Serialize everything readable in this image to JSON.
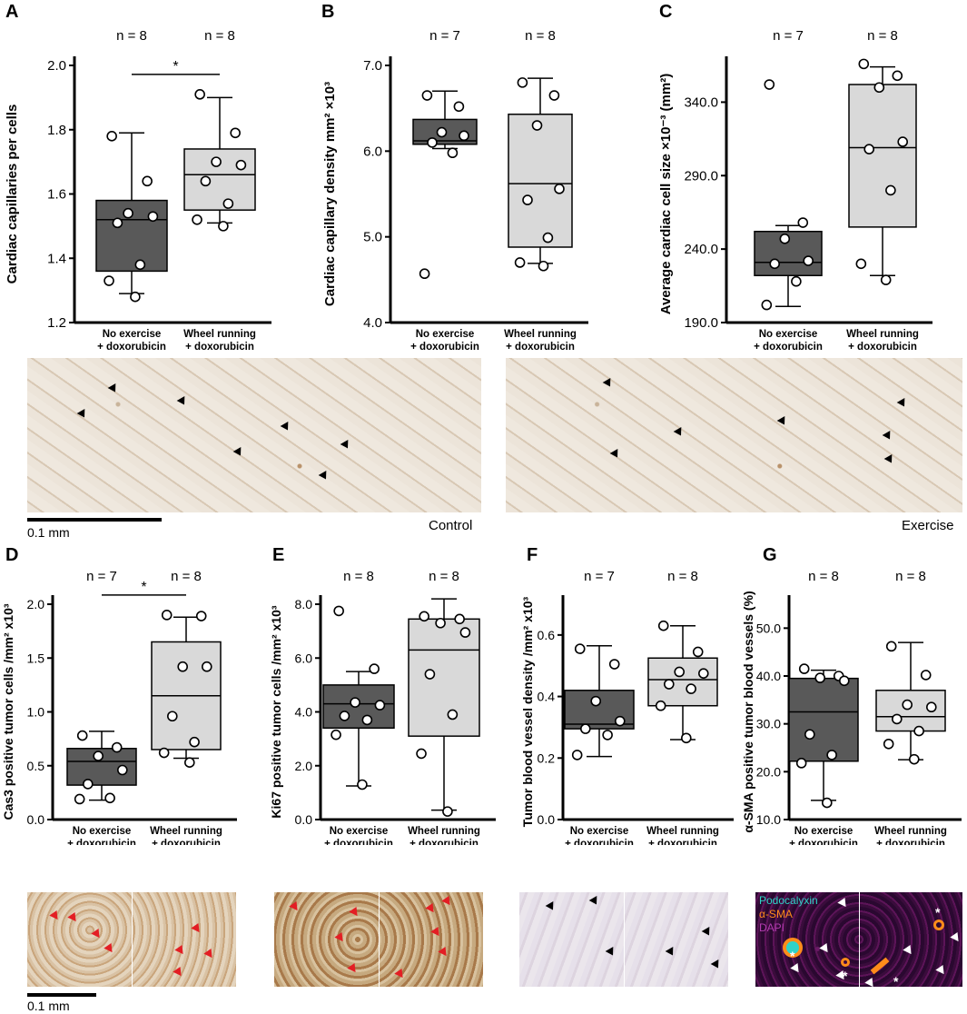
{
  "chart_data": [
    {
      "panel": "A",
      "type": "box",
      "ylabel": "Cardiac  capillaries per cells",
      "ylim": [
        1.2,
        2.0
      ],
      "yticks": [
        "1.2",
        "1.4",
        "1.6",
        "1.8",
        "2.0"
      ],
      "categories": [
        "No exercise\n+ doxorubicin",
        "Wheel running\n+ doxorubicin"
      ],
      "n_labels": [
        "n = 8",
        "n = 8"
      ],
      "significance": "*",
      "boxes": [
        {
          "color": "#595959",
          "min": 1.29,
          "q1": 1.36,
          "median": 1.52,
          "q3": 1.58,
          "max": 1.79,
          "points": [
            1.78,
            1.64,
            1.54,
            1.53,
            1.51,
            1.38,
            1.33,
            1.28
          ]
        },
        {
          "color": "#d9d9d9",
          "min": 1.51,
          "q1": 1.55,
          "median": 1.66,
          "q3": 1.74,
          "max": 1.9,
          "points": [
            1.91,
            1.79,
            1.7,
            1.69,
            1.64,
            1.57,
            1.52,
            1.5
          ]
        }
      ]
    },
    {
      "panel": "B",
      "type": "box",
      "ylabel": "Cardiac  capillary density mm² ×10³",
      "ylim": [
        4.0,
        7.0
      ],
      "yticks": [
        "4.0",
        "5.0",
        "6.0",
        "7.0"
      ],
      "categories": [
        "No exercise\n+ doxorubicin",
        "Wheel running\n+ doxorubicin"
      ],
      "n_labels": [
        "n = 7",
        "n = 8"
      ],
      "significance": "",
      "boxes": [
        {
          "color": "#595959",
          "min": 6.03,
          "q1": 6.08,
          "median": 6.12,
          "q3": 6.37,
          "max": 6.7,
          "points": [
            6.65,
            6.52,
            6.22,
            6.18,
            6.1,
            5.98,
            4.57
          ]
        },
        {
          "color": "#d9d9d9",
          "min": 4.69,
          "q1": 4.88,
          "median": 5.62,
          "q3": 6.43,
          "max": 6.85,
          "points": [
            6.8,
            6.65,
            6.3,
            5.56,
            5.43,
            4.99,
            4.7,
            4.66
          ]
        }
      ]
    },
    {
      "panel": "C",
      "type": "box",
      "ylabel": "Average cardiac cell size ×10⁻³ (mm²)",
      "ylim": [
        190.0,
        365.0
      ],
      "yticks": [
        "190.0",
        "240.0",
        "290.0",
        "340.0"
      ],
      "categories": [
        "No exercise\n+ doxorubicin",
        "Wheel running\n+ doxorubicin"
      ],
      "n_labels": [
        "n = 7",
        "n = 8"
      ],
      "significance": "",
      "boxes": [
        {
          "color": "#595959",
          "min": 201,
          "q1": 222,
          "median": 231,
          "q3": 252,
          "max": 256,
          "points": [
            352,
            258,
            247,
            232,
            230,
            218,
            202
          ]
        },
        {
          "color": "#d9d9d9",
          "min": 222,
          "q1": 255,
          "median": 309,
          "q3": 352,
          "max": 364,
          "points": [
            366,
            358,
            350,
            313,
            308,
            280,
            230,
            219
          ]
        }
      ]
    },
    {
      "panel": "D",
      "type": "box",
      "ylabel": "Cas3 positive tumor cells /mm² x10³",
      "ylim": [
        0.0,
        2.0
      ],
      "yticks": [
        "0.0",
        "0.5",
        "1.0",
        "1.5",
        "2.0"
      ],
      "categories": [
        "No exercise\n+ doxorubicin",
        "Wheel running\n+ doxorubicin"
      ],
      "n_labels": [
        "n = 7",
        "n = 8"
      ],
      "significance": "*",
      "boxes": [
        {
          "color": "#595959",
          "min": 0.18,
          "q1": 0.32,
          "median": 0.54,
          "q3": 0.66,
          "max": 0.82,
          "points": [
            0.78,
            0.67,
            0.59,
            0.46,
            0.33,
            0.2,
            0.19
          ]
        },
        {
          "color": "#d9d9d9",
          "min": 0.57,
          "q1": 0.65,
          "median": 1.15,
          "q3": 1.65,
          "max": 1.88,
          "points": [
            1.9,
            1.89,
            1.42,
            1.42,
            0.96,
            0.72,
            0.62,
            0.53
          ]
        }
      ]
    },
    {
      "panel": "E",
      "type": "box",
      "ylabel": "Ki67 positive tumor cells /mm² x10³",
      "ylim": [
        0.0,
        8.0
      ],
      "yticks": [
        "0.0",
        "2.0",
        "4.0",
        "6.0",
        "8.0"
      ],
      "categories": [
        "No exercise\n+ doxorubicin",
        "Wheel running\n+ doxorubicin"
      ],
      "n_labels": [
        "n = 8",
        "n = 8"
      ],
      "significance": "",
      "boxes": [
        {
          "color": "#595959",
          "min": 1.25,
          "q1": 3.4,
          "median": 4.3,
          "q3": 5.0,
          "max": 5.5,
          "points": [
            7.75,
            5.6,
            4.35,
            4.25,
            3.85,
            3.7,
            3.15,
            1.3
          ]
        },
        {
          "color": "#d9d9d9",
          "min": 0.35,
          "q1": 3.1,
          "median": 6.3,
          "q3": 7.45,
          "max": 8.2,
          "points": [
            7.55,
            7.45,
            7.3,
            6.95,
            5.4,
            3.9,
            2.45,
            0.3
          ]
        }
      ]
    },
    {
      "panel": "F",
      "type": "box",
      "ylabel": "Tumor blood vessel density /mm² x10³",
      "ylim": [
        0.0,
        0.7
      ],
      "yticks": [
        "0.0",
        "0.2",
        "0.4",
        "0.6"
      ],
      "categories": [
        "No exercise\n+ doxorubicin",
        "Wheel running\n+ doxorubicin"
      ],
      "n_labels": [
        "n = 7",
        "n = 8"
      ],
      "significance": "",
      "boxes": [
        {
          "color": "#595959",
          "min": 0.205,
          "q1": 0.295,
          "median": 0.31,
          "q3": 0.42,
          "max": 0.565,
          "points": [
            0.555,
            0.505,
            0.385,
            0.32,
            0.295,
            0.275,
            0.21
          ]
        },
        {
          "color": "#d9d9d9",
          "min": 0.26,
          "q1": 0.37,
          "median": 0.455,
          "q3": 0.525,
          "max": 0.63,
          "points": [
            0.63,
            0.545,
            0.48,
            0.475,
            0.44,
            0.425,
            0.37,
            0.265
          ]
        }
      ]
    },
    {
      "panel": "G",
      "type": "box",
      "ylabel": "α-SMA positive tumor blood vessels (%)",
      "ylim": [
        10.0,
        55.0
      ],
      "yticks": [
        "10.0",
        "20.0",
        "30.0",
        "40.0",
        "50.0"
      ],
      "categories": [
        "No exercise\n+ doxorubicin",
        "Wheel running\n+ doxorubicin"
      ],
      "n_labels": [
        "n = 8",
        "n = 8"
      ],
      "significance": "",
      "boxes": [
        {
          "color": "#595959",
          "min": 14.0,
          "q1": 22.2,
          "median": 32.5,
          "q3": 39.5,
          "max": 41.2,
          "points": [
            41.5,
            40.0,
            39.6,
            39.0,
            27.8,
            23.5,
            21.8,
            13.5
          ]
        },
        {
          "color": "#d9d9d9",
          "min": 22.5,
          "q1": 28.5,
          "median": 31.5,
          "q3": 37.0,
          "max": 47.0,
          "points": [
            46.2,
            40.2,
            34.0,
            33.5,
            31.0,
            28.5,
            25.8,
            22.6
          ]
        }
      ]
    }
  ],
  "labels": {
    "panel_letters": [
      "A",
      "B",
      "C",
      "D",
      "E",
      "F",
      "G"
    ],
    "micro_captions": {
      "control": "Control",
      "exercise": "Exercise"
    },
    "scale_labels": {
      "top": "0.1 mm",
      "bottom": "0.1 mm"
    },
    "fluor_legend": {
      "podocalyxin": "Podocalyxin",
      "asma": "α-SMA",
      "dapi": "DAPI"
    },
    "fluor_colors": {
      "podocalyxin": "#2fd3c8",
      "asma": "#ff8c1a",
      "dapi": "#b23bb0"
    },
    "asterisk": "*"
  }
}
